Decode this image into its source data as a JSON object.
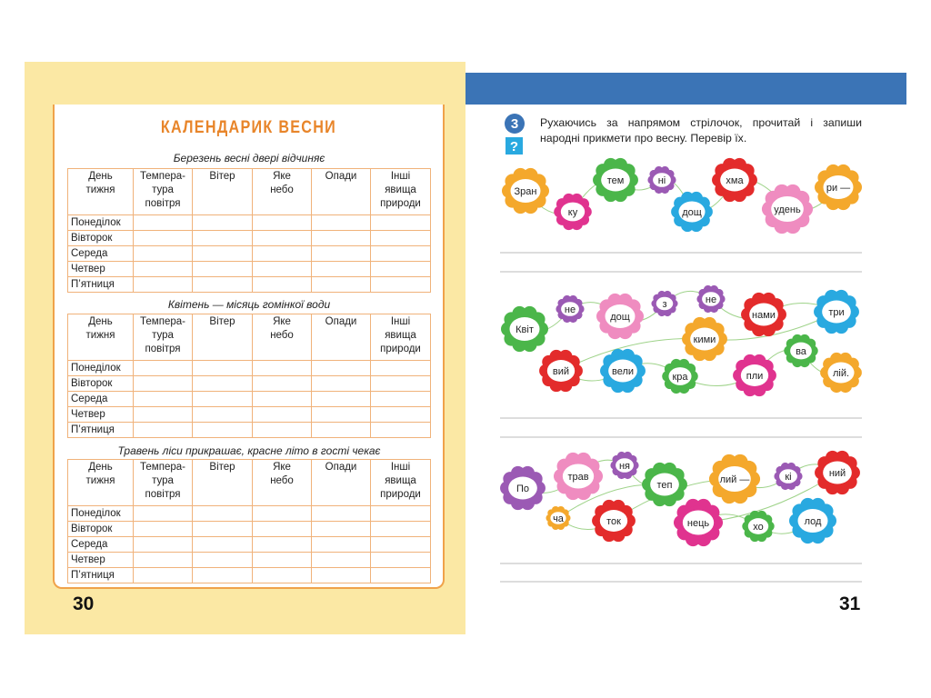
{
  "left_page": {
    "title": "КАЛЕНДАРИК ВЕСНИ",
    "page_number": "30",
    "tables": [
      {
        "caption": "Березень весні двері відчиняє",
        "headers": [
          "День\nтижня",
          "Темпера-\nтура\nповітря",
          "Вітер",
          "Яке\nнебо",
          "Опади",
          "Інші\nявища\nприроди"
        ],
        "rows": [
          "Понеділок",
          "Вівторок",
          "Середа",
          "Четвер",
          "П’ятниця"
        ]
      },
      {
        "caption": "Квітень — місяць гомінкої води",
        "headers": [
          "День\nтижня",
          "Темпера-\nтура\nповітря",
          "Вітер",
          "Яке\nнебо",
          "Опади",
          "Інші\nявища\nприроди"
        ],
        "rows": [
          "Понеділок",
          "Вівторок",
          "Середа",
          "Четвер",
          "П’ятниця"
        ]
      },
      {
        "caption": "Травень ліси прикрашає, красне літо в гості чекає",
        "headers": [
          "День\nтижня",
          "Темпера-\nтура\nповітря",
          "Вітер",
          "Яке\nнебо",
          "Опади",
          "Інші\nявища\nприроди"
        ],
        "rows": [
          "Понеділок",
          "Вівторок",
          "Середа",
          "Четвер",
          "П’ятниця"
        ]
      }
    ]
  },
  "right_page": {
    "task_number": "3",
    "task_icon": "?",
    "instruction": "Рухаючись за напрямом стрілочок, прочитай і запиши народні прикмети про весну. Перевір їх.",
    "page_number": "31",
    "puzzles": [
      {
        "flowers": [
          "Зран",
          "ку",
          "тем",
          "ні",
          "дощ",
          "хма",
          "удень",
          "ри —"
        ]
      },
      {
        "flowers": [
          "Квіт",
          "не",
          "дощ",
          "з",
          "не",
          "нами",
          "три",
          "кими",
          "вий",
          "вели",
          "кра",
          "пли",
          "ва",
          "лій."
        ]
      },
      {
        "flowers": [
          "По",
          "трав",
          "ня",
          "теп",
          "ча",
          "ток",
          "лий —",
          "кі",
          "ний",
          "нець",
          "хо",
          "лод"
        ]
      }
    ]
  }
}
